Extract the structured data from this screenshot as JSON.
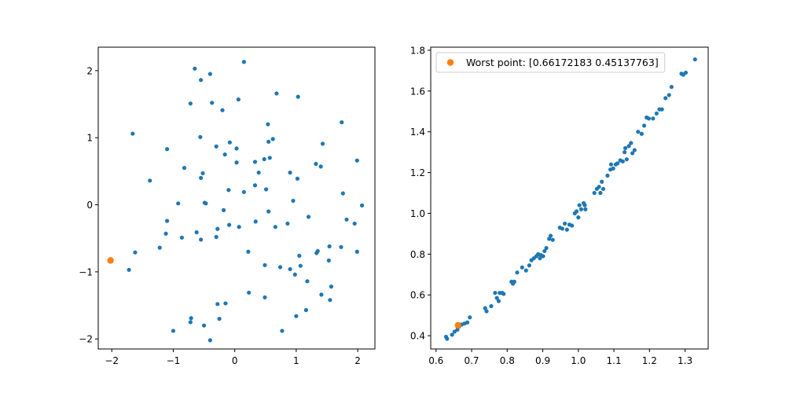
{
  "chart_data": [
    {
      "type": "scatter",
      "xlim": [
        -2.22,
        2.28
      ],
      "ylim": [
        -2.15,
        2.35
      ],
      "xticks": [
        -2,
        -1,
        0,
        1,
        2
      ],
      "yticks": [
        -2,
        -1,
        0,
        1,
        2
      ],
      "xtick_labels": [
        "−2",
        "−1",
        "0",
        "1",
        "2"
      ],
      "ytick_labels": [
        "−2",
        "−1",
        "0",
        "1",
        "2"
      ],
      "grid": false,
      "series": [
        {
          "color": "#1f77b4",
          "points": [
            [
              -0.65,
              2.03
            ],
            [
              0.15,
              2.13
            ],
            [
              -0.4,
              1.95
            ],
            [
              -0.55,
              1.86
            ],
            [
              0.68,
              1.66
            ],
            [
              1.03,
              1.61
            ],
            [
              0.06,
              1.57
            ],
            [
              -0.72,
              1.51
            ],
            [
              -0.37,
              1.52
            ],
            [
              -0.2,
              1.41
            ],
            [
              -1.66,
              1.06
            ],
            [
              1.74,
              1.23
            ],
            [
              0.54,
              1.2
            ],
            [
              -0.56,
              1.01
            ],
            [
              0.62,
              0.98
            ],
            [
              -0.08,
              0.93
            ],
            [
              0.55,
              0.94
            ],
            [
              -0.3,
              0.87
            ],
            [
              0.03,
              0.84
            ],
            [
              1.43,
              0.91
            ],
            [
              -1.1,
              0.83
            ],
            [
              -0.16,
              0.75
            ],
            [
              0.48,
              0.68
            ],
            [
              0.57,
              0.7
            ],
            [
              0.33,
              0.64
            ],
            [
              0.03,
              0.63
            ],
            [
              1.99,
              0.66
            ],
            [
              1.32,
              0.61
            ],
            [
              1.4,
              0.57
            ],
            [
              -0.82,
              0.55
            ],
            [
              0.39,
              0.48
            ],
            [
              0.9,
              0.48
            ],
            [
              -0.52,
              0.47
            ],
            [
              -0.55,
              0.4
            ],
            [
              1.02,
              0.39
            ],
            [
              -1.38,
              0.36
            ],
            [
              0.33,
              0.29
            ],
            [
              0.51,
              0.23
            ],
            [
              -0.1,
              0.22
            ],
            [
              0.15,
              0.19
            ],
            [
              1.76,
              0.17
            ],
            [
              0.95,
              0.06
            ],
            [
              -0.49,
              0.03
            ],
            [
              -0.47,
              0.02
            ],
            [
              -0.92,
              0.02
            ],
            [
              2.07,
              -0.01
            ],
            [
              -0.18,
              -0.08
            ],
            [
              0.55,
              -0.1
            ],
            [
              1.2,
              -0.18
            ],
            [
              1.82,
              -0.22
            ],
            [
              -1.1,
              -0.24
            ],
            [
              0.34,
              -0.25
            ],
            [
              1.95,
              -0.28
            ],
            [
              -0.09,
              -0.3
            ],
            [
              0.86,
              -0.28
            ],
            [
              0.66,
              -0.33
            ],
            [
              0.07,
              -0.33
            ],
            [
              -0.28,
              -0.36
            ],
            [
              -1.12,
              -0.43
            ],
            [
              -0.62,
              -0.41
            ],
            [
              -0.86,
              -0.49
            ],
            [
              -0.3,
              -0.48
            ],
            [
              -0.55,
              -0.52
            ],
            [
              1.54,
              -0.62
            ],
            [
              1.73,
              -0.63
            ],
            [
              -1.22,
              -0.64
            ],
            [
              -1.62,
              -0.71
            ],
            [
              1.35,
              -0.69
            ],
            [
              1.33,
              -0.72
            ],
            [
              0.22,
              -0.7
            ],
            [
              1.99,
              -0.7
            ],
            [
              1.05,
              -0.76
            ],
            [
              1.53,
              -0.83
            ],
            [
              0.49,
              -0.9
            ],
            [
              1.07,
              -0.91
            ],
            [
              0.74,
              -0.93
            ],
            [
              -1.72,
              -0.97
            ],
            [
              0.9,
              -0.96
            ],
            [
              0.98,
              -1.04
            ],
            [
              1.18,
              -1.14
            ],
            [
              1.57,
              -1.22
            ],
            [
              1.41,
              -1.34
            ],
            [
              0.23,
              -1.31
            ],
            [
              0.49,
              -1.38
            ],
            [
              1.55,
              -1.42
            ],
            [
              -0.15,
              -1.47
            ],
            [
              -0.28,
              -1.48
            ],
            [
              1.16,
              -1.57
            ],
            [
              1.0,
              -1.66
            ],
            [
              -0.71,
              -1.69
            ],
            [
              -0.25,
              -1.7
            ],
            [
              -0.72,
              -1.75
            ],
            [
              -0.5,
              -1.8
            ],
            [
              -1.0,
              -1.88
            ],
            [
              0.77,
              -1.88
            ],
            [
              -0.4,
              -2.02
            ]
          ]
        },
        {
          "color": "#ff7f0e",
          "points": [
            [
              -2.02,
              -0.83
            ]
          ]
        }
      ]
    },
    {
      "type": "scatter",
      "xlim": [
        0.585,
        1.365
      ],
      "ylim": [
        0.335,
        1.815
      ],
      "xticks": [
        0.6,
        0.7,
        0.8,
        0.9,
        1.0,
        1.1,
        1.2,
        1.3
      ],
      "yticks": [
        0.4,
        0.6,
        0.8,
        1.0,
        1.2,
        1.4,
        1.6,
        1.8
      ],
      "xtick_labels": [
        "0.6",
        "0.7",
        "0.8",
        "0.9",
        "1.0",
        "1.1",
        "1.2",
        "1.3"
      ],
      "ytick_labels": [
        "0.4",
        "0.6",
        "0.8",
        "1.0",
        "1.2",
        "1.4",
        "1.6",
        "1.8"
      ],
      "grid": false,
      "legend": {
        "placement": "upper-left",
        "entries": [
          {
            "label": "Worst point: [0.66172183 0.45137763]",
            "color": "#ff7f0e"
          }
        ]
      },
      "series": [
        {
          "color": "#1f77b4",
          "points": [
            [
              0.628,
              0.395
            ],
            [
              0.631,
              0.385
            ],
            [
              0.645,
              0.405
            ],
            [
              0.652,
              0.42
            ],
            [
              0.66,
              0.43
            ],
            [
              0.665,
              0.445
            ],
            [
              0.672,
              0.455
            ],
            [
              0.68,
              0.46
            ],
            [
              0.688,
              0.465
            ],
            [
              0.695,
              0.49
            ],
            [
              0.738,
              0.535
            ],
            [
              0.742,
              0.52
            ],
            [
              0.755,
              0.545
            ],
            [
              0.766,
              0.61
            ],
            [
              0.771,
              0.585
            ],
            [
              0.776,
              0.57
            ],
            [
              0.779,
              0.61
            ],
            [
              0.786,
              0.61
            ],
            [
              0.79,
              0.605
            ],
            [
              0.812,
              0.665
            ],
            [
              0.816,
              0.655
            ],
            [
              0.82,
              0.665
            ],
            [
              0.828,
              0.71
            ],
            [
              0.842,
              0.735
            ],
            [
              0.853,
              0.72
            ],
            [
              0.862,
              0.745
            ],
            [
              0.868,
              0.77
            ],
            [
              0.875,
              0.78
            ],
            [
              0.882,
              0.79
            ],
            [
              0.887,
              0.8
            ],
            [
              0.892,
              0.78
            ],
            [
              0.895,
              0.795
            ],
            [
              0.901,
              0.79
            ],
            [
              0.905,
              0.815
            ],
            [
              0.91,
              0.83
            ],
            [
              0.918,
              0.875
            ],
            [
              0.922,
              0.89
            ],
            [
              0.928,
              0.87
            ],
            [
              0.948,
              0.93
            ],
            [
              0.955,
              0.925
            ],
            [
              0.962,
              0.95
            ],
            [
              0.968,
              0.92
            ],
            [
              0.975,
              0.945
            ],
            [
              0.982,
              0.94
            ],
            [
              0.99,
              1.0
            ],
            [
              0.995,
              1.01
            ],
            [
              1.0,
              0.98
            ],
            [
              1.003,
              1.04
            ],
            [
              1.008,
              1.02
            ],
            [
              1.015,
              1.05
            ],
            [
              1.018,
              1.04
            ],
            [
              1.02,
              1.02
            ],
            [
              1.045,
              1.1
            ],
            [
              1.052,
              1.12
            ],
            [
              1.058,
              1.13
            ],
            [
              1.062,
              1.1
            ],
            [
              1.066,
              1.155
            ],
            [
              1.07,
              1.12
            ],
            [
              1.082,
              1.185
            ],
            [
              1.09,
              1.215
            ],
            [
              1.092,
              1.24
            ],
            [
              1.098,
              1.22
            ],
            [
              1.105,
              1.24
            ],
            [
              1.11,
              1.245
            ],
            [
              1.118,
              1.26
            ],
            [
              1.125,
              1.255
            ],
            [
              1.13,
              1.3
            ],
            [
              1.132,
              1.32
            ],
            [
              1.136,
              1.265
            ],
            [
              1.142,
              1.33
            ],
            [
              1.148,
              1.345
            ],
            [
              1.152,
              1.295
            ],
            [
              1.158,
              1.31
            ],
            [
              1.168,
              1.4
            ],
            [
              1.178,
              1.39
            ],
            [
              1.185,
              1.43
            ],
            [
              1.192,
              1.47
            ],
            [
              1.198,
              1.465
            ],
            [
              1.21,
              1.465
            ],
            [
              1.22,
              1.49
            ],
            [
              1.228,
              1.51
            ],
            [
              1.235,
              1.51
            ],
            [
              1.245,
              1.565
            ],
            [
              1.255,
              1.58
            ],
            [
              1.262,
              1.62
            ],
            [
              1.29,
              1.685
            ],
            [
              1.295,
              1.68
            ],
            [
              1.302,
              1.69
            ],
            [
              1.328,
              1.755
            ]
          ]
        },
        {
          "color": "#ff7f0e",
          "points": [
            [
              0.6617,
              0.4514
            ]
          ]
        }
      ]
    }
  ]
}
